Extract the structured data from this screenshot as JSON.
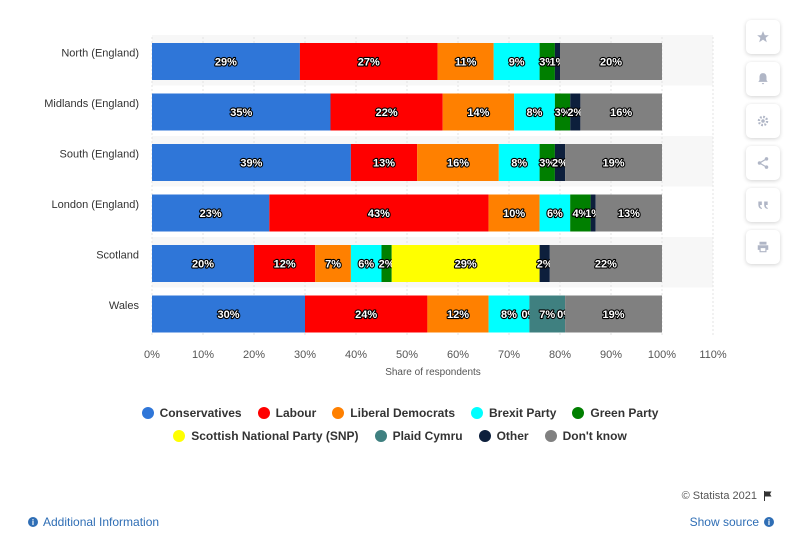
{
  "chart_data": {
    "type": "bar",
    "orientation": "horizontal",
    "stacked": true,
    "categories": [
      "North (England)",
      "Midlands (England)",
      "South (England)",
      "London (England)",
      "Scotland",
      "Wales"
    ],
    "series": [
      {
        "name": "Conservatives",
        "color": "#2f76d8",
        "values": [
          29,
          35,
          39,
          23,
          20,
          30
        ]
      },
      {
        "name": "Labour",
        "color": "#ff0000",
        "values": [
          27,
          22,
          13,
          43,
          12,
          24
        ]
      },
      {
        "name": "Liberal Democrats",
        "color": "#ff8000",
        "values": [
          11,
          14,
          16,
          10,
          7,
          12
        ]
      },
      {
        "name": "Brexit Party",
        "color": "#00ffff",
        "values": [
          9,
          8,
          8,
          6,
          6,
          8
        ]
      },
      {
        "name": "Green Party",
        "color": "#007f00",
        "values": [
          3,
          3,
          3,
          4,
          2,
          0
        ]
      },
      {
        "name": "Scottish National Party (SNP)",
        "color": "#ffff00",
        "values": [
          0,
          0,
          0,
          0,
          29,
          0
        ]
      },
      {
        "name": "Plaid Cymru",
        "color": "#3f8080",
        "values": [
          0,
          0,
          0,
          0,
          0,
          7
        ]
      },
      {
        "name": "Other",
        "color": "#0d1f3c",
        "values": [
          1,
          2,
          2,
          1,
          2,
          0
        ]
      },
      {
        "name": "Don't know",
        "color": "#808080",
        "values": [
          20,
          16,
          19,
          13,
          22,
          19
        ]
      }
    ],
    "data_labels": [
      [
        "29%",
        "27%",
        "11%",
        "9%",
        "3%",
        "",
        "",
        "1%",
        "20%"
      ],
      [
        "35%",
        "22%",
        "14%",
        "8%",
        "3%",
        "",
        "",
        "2%",
        "16%"
      ],
      [
        "39%",
        "13%",
        "16%",
        "8%",
        "3%",
        "",
        "",
        "2%",
        "19%"
      ],
      [
        "23%",
        "43%",
        "10%",
        "6%",
        "4%",
        "",
        "",
        "1%",
        "13%"
      ],
      [
        "20%",
        "12%",
        "7%",
        "6%",
        "2%",
        "29%",
        "",
        "2%",
        "22%"
      ],
      [
        "30%",
        "24%",
        "12%",
        "8%",
        "0%",
        "",
        "7%",
        "0%",
        "19%"
      ]
    ],
    "xlabel": "Share of respondents",
    "xlim": [
      0,
      110
    ],
    "xticks": [
      "0%",
      "10%",
      "20%",
      "30%",
      "40%",
      "50%",
      "60%",
      "70%",
      "80%",
      "90%",
      "100%",
      "110%"
    ],
    "grid": true,
    "legend_position": "bottom"
  },
  "legend": [
    "Conservatives",
    "Labour",
    "Liberal Democrats",
    "Brexit Party",
    "Green Party",
    "Scottish National Party (SNP)",
    "Plaid Cymru",
    "Other",
    "Don't know"
  ],
  "footer": {
    "credit": "© Statista 2021",
    "additional_info": "Additional Information",
    "show_source": "Show source"
  },
  "icons": [
    "star-icon",
    "bell-icon",
    "gear-icon",
    "share-icon",
    "quote-icon",
    "print-icon",
    "flag-icon",
    "info-icon"
  ]
}
